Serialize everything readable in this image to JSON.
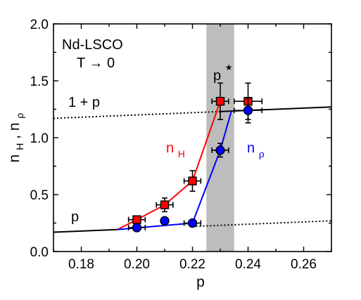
{
  "chart_data": {
    "type": "scatter",
    "title": "",
    "xlabel": "p",
    "ylabel": {
      "main": "n",
      "sub1": "H",
      "sep": ", n",
      "sub2": "ρ"
    },
    "xlim": [
      0.17,
      0.27
    ],
    "ylim": [
      0.0,
      2.0
    ],
    "x_ticks": [
      0.18,
      0.2,
      0.22,
      0.24,
      0.26
    ],
    "x_tick_labels": [
      "0.18",
      "0.20",
      "0.22",
      "0.24",
      "0.26"
    ],
    "y_ticks": [
      0.0,
      0.5,
      1.0,
      1.5,
      2.0
    ],
    "y_tick_labels": [
      "0.0",
      "0.5",
      "1.0",
      "1.5",
      "2.0"
    ],
    "grid": false,
    "legend": "none",
    "shaded_region": {
      "label": "p",
      "label_sup": "★",
      "x": [
        0.225,
        0.235
      ],
      "color": "#bdbdbd"
    },
    "reference_lines": [
      {
        "label": "1 + p",
        "slope": 1,
        "intercept": 1,
        "solid_range": [
          0.23,
          0.27
        ],
        "dotted_range": [
          0.17,
          0.23
        ]
      },
      {
        "label": "p",
        "slope": 1,
        "intercept": 0,
        "solid_range": [
          0.17,
          0.193
        ],
        "dotted_range": [
          0.22,
          0.27
        ]
      }
    ],
    "series": [
      {
        "name": {
          "main": "n",
          "sub": "H"
        },
        "color": "#ff0000",
        "marker": "square",
        "points": [
          {
            "x": 0.2,
            "y": 0.28,
            "xerr": 0.003,
            "yerr": 0.03
          },
          {
            "x": 0.21,
            "y": 0.41,
            "xerr": 0.003,
            "yerr": 0.06
          },
          {
            "x": 0.22,
            "y": 0.62,
            "xerr": 0.003,
            "yerr": 0.09
          },
          {
            "x": 0.23,
            "y": 1.32,
            "xerr": 0.003,
            "yerr": 0.16
          },
          {
            "x": 0.24,
            "y": 1.32,
            "xerr": 0.005,
            "yerr": 0.16
          }
        ],
        "line": [
          [
            0.193,
            0.193
          ],
          [
            0.2,
            0.28
          ],
          [
            0.21,
            0.41
          ],
          [
            0.22,
            0.62
          ],
          [
            0.23,
            1.32
          ]
        ]
      },
      {
        "name": {
          "main": "n",
          "sub": "ρ"
        },
        "color": "#0000ff",
        "marker": "circle",
        "points": [
          {
            "x": 0.2,
            "y": 0.21,
            "xerr": 0.003,
            "yerr": 0.02
          },
          {
            "x": 0.21,
            "y": 0.27,
            "xerr": 0,
            "yerr": 0
          },
          {
            "x": 0.22,
            "y": 0.25,
            "xerr": 0.003,
            "yerr": 0
          },
          {
            "x": 0.23,
            "y": 0.89,
            "xerr": 0.003,
            "yerr": 0.06
          },
          {
            "x": 0.24,
            "y": 1.24,
            "xerr": 0.005,
            "yerr": 0.11
          }
        ],
        "line": [
          [
            0.193,
            0.193
          ],
          [
            0.22,
            0.25
          ],
          [
            0.23,
            0.89
          ],
          [
            0.234,
            1.234
          ]
        ]
      }
    ],
    "annotations": [
      {
        "text": "Nd-LSCO"
      },
      {
        "text": "T → 0"
      }
    ]
  }
}
